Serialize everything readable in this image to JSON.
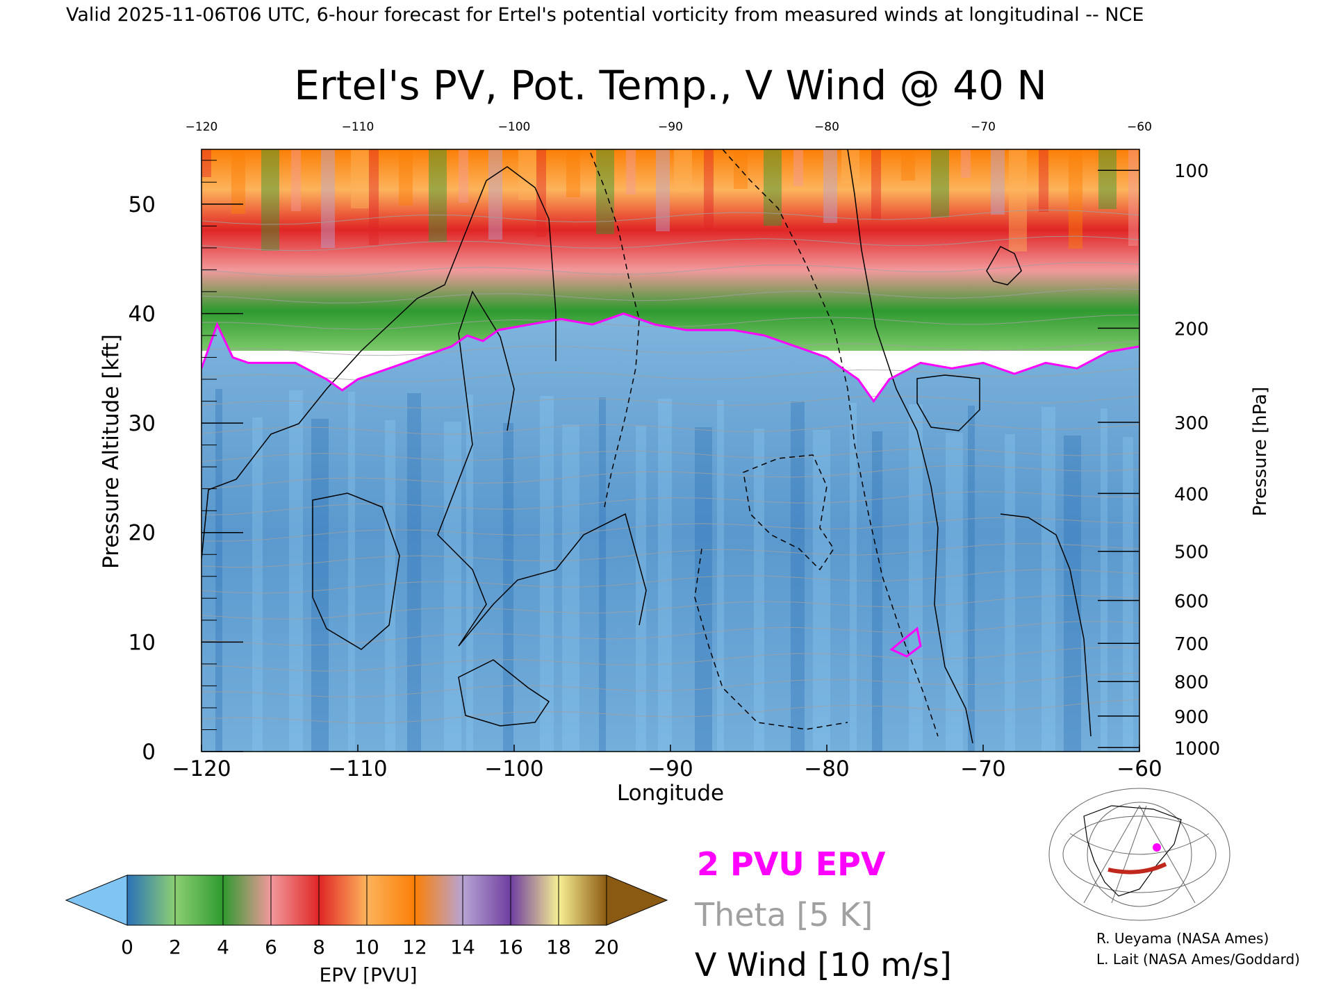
{
  "header": {
    "text": "Valid 2025-11-06T06 UTC, 6-hour forecast for Ertel's potential vorticity from measured winds at longitudinal -- NCE"
  },
  "chart_data": {
    "type": "heatmap",
    "title": "Ertel's PV, Pot. Temp., V Wind @ 40 N",
    "xlabel": "Longitude",
    "ylabel_left": "Pressure Altitude [kft]",
    "ylabel_right": "Pressure [hPa]",
    "xlim": [
      -120,
      -60
    ],
    "ylim": [
      0,
      55
    ],
    "x_ticks": [
      "-120",
      "-110",
      "-100",
      "-90",
      "-80",
      "-70",
      "-60"
    ],
    "y_ticks_left": [
      "0",
      "10",
      "20",
      "30",
      "40",
      "50"
    ],
    "y_ticks_right": [
      "100",
      "200",
      "300",
      "400",
      "500",
      "600",
      "700",
      "800",
      "900",
      "1000"
    ],
    "tropopause_2pvu_kft": [
      [
        -120,
        35
      ],
      [
        -119,
        39
      ],
      [
        -118,
        36
      ],
      [
        -117,
        35.5
      ],
      [
        -114,
        35.5
      ],
      [
        -112,
        34
      ],
      [
        -111,
        33
      ],
      [
        -110,
        34
      ],
      [
        -108,
        35
      ],
      [
        -106,
        36
      ],
      [
        -104,
        37
      ],
      [
        -103,
        38
      ],
      [
        -102,
        37.5
      ],
      [
        -101,
        38.5
      ],
      [
        -99,
        39
      ],
      [
        -97,
        39.5
      ],
      [
        -95,
        39
      ],
      [
        -93,
        40
      ],
      [
        -91,
        39
      ],
      [
        -89,
        38.5
      ],
      [
        -86,
        38.5
      ],
      [
        -84,
        38
      ],
      [
        -82,
        37
      ],
      [
        -80,
        36
      ],
      [
        -79,
        35
      ],
      [
        -78,
        34
      ],
      [
        -77,
        32
      ],
      [
        -76,
        34
      ],
      [
        -74,
        35.5
      ],
      [
        -72,
        35
      ],
      [
        -70,
        35.5
      ],
      [
        -68,
        34.5
      ],
      [
        -66,
        35.5
      ],
      [
        -64,
        35
      ],
      [
        -62,
        36.5
      ],
      [
        -60,
        37
      ]
    ],
    "colorbar": {
      "label": "EPV [PVU]",
      "min": 0,
      "max": 20,
      "ticks": [
        "0",
        "2",
        "4",
        "6",
        "8",
        "10",
        "12",
        "14",
        "16",
        "18",
        "20"
      ],
      "colors": [
        "#2b72b8",
        "#8ccf73",
        "#2f9a2f",
        "#f2999c",
        "#e02525",
        "#fdb35c",
        "#fb7f06",
        "#b7a5d4",
        "#6f3ea0",
        "#f7f094",
        "#8b5a12"
      ],
      "under_color": "#7fc4f2",
      "over_color": "#8b5a12"
    },
    "legend": {
      "epv": "2 PVU EPV",
      "theta": "Theta [5 K]",
      "vwind": "V Wind [10 m/s]"
    },
    "colors": {
      "epv_line": "#ff00ff",
      "theta_line": "#a0a0a0",
      "vwind_line": "#000000"
    }
  },
  "credits": {
    "line1": "R. Ueyama (NASA Ames)",
    "line2": "L. Lait (NASA Ames/Goddard)"
  }
}
